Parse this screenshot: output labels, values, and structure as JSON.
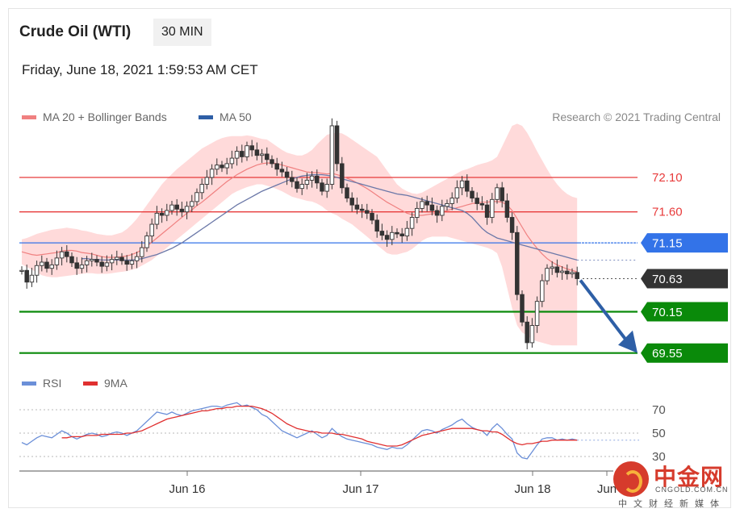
{
  "header": {
    "title": "Crude Oil (WTI)",
    "timeframe": "30 MIN",
    "datetime": "Friday, June 18, 2021 1:59:53 AM CET"
  },
  "legend": {
    "ma20": "MA 20 + Bollinger Bands",
    "ma50": "MA 50",
    "credit": "Research © 2021 Trading Central"
  },
  "rsi_legend": {
    "rsi": "RSI",
    "ma9": "9MA"
  },
  "colors": {
    "ma20": "#f08080",
    "band_fill": "#ffd6d6",
    "ma50": "#6b78a8",
    "resistance": "#e83b3b",
    "pivot": "#3373e8",
    "support": "#0a8a0a",
    "last_price": "#333333",
    "candle": "#333333",
    "rsi": "#6b8fd8",
    "rsi_ma": "#e03030",
    "arrow": "#2e5fa6"
  },
  "watermark": {
    "name": "中金网",
    "url": "CNGOLD.COM.CN",
    "sub": "中文财经新媒体"
  },
  "chart_data": [
    {
      "type": "candlestick",
      "title": "Crude Oil (WTI)",
      "ylim": [
        69.35,
        72.65
      ],
      "x_ticks": [
        "Jun 16",
        "Jun 17",
        "Jun 18",
        "Jun"
      ],
      "levels": [
        {
          "label": "72.10",
          "value": 72.1,
          "kind": "resistance"
        },
        {
          "label": "71.60",
          "value": 71.6,
          "kind": "resistance"
        },
        {
          "label": "71.15",
          "value": 71.15,
          "kind": "pivot"
        },
        {
          "label": "70.63",
          "value": 70.63,
          "kind": "last"
        },
        {
          "label": "70.15",
          "value": 70.15,
          "kind": "support"
        },
        {
          "label": "69.55",
          "value": 69.55,
          "kind": "support"
        }
      ],
      "close": [
        70.75,
        70.58,
        70.68,
        70.82,
        70.87,
        70.78,
        70.83,
        70.93,
        71.02,
        70.95,
        70.86,
        70.78,
        70.83,
        70.89,
        70.91,
        70.87,
        70.81,
        70.86,
        70.91,
        70.94,
        70.89,
        70.84,
        70.89,
        70.95,
        71.08,
        71.25,
        71.42,
        71.58,
        71.55,
        71.62,
        71.7,
        71.64,
        71.6,
        71.68,
        71.75,
        71.88,
        72.0,
        72.1,
        72.22,
        72.28,
        72.24,
        72.3,
        72.38,
        72.48,
        72.4,
        72.56,
        72.5,
        72.42,
        72.44,
        72.36,
        72.3,
        72.22,
        72.18,
        72.1,
        72.04,
        71.94,
        72.0,
        72.06,
        72.12,
        72.02,
        71.9,
        72.0,
        72.85,
        72.3,
        71.95,
        71.8,
        71.7,
        71.64,
        71.62,
        71.58,
        71.48,
        71.32,
        71.26,
        71.2,
        71.3,
        71.28,
        71.25,
        71.36,
        71.52,
        71.65,
        71.75,
        71.7,
        71.62,
        71.55,
        71.68,
        71.72,
        71.8,
        71.95,
        72.05,
        71.9,
        71.8,
        71.72,
        71.7,
        71.52,
        71.78,
        71.95,
        71.76,
        71.52,
        71.3,
        70.4,
        70.0,
        69.7,
        69.95,
        70.3,
        70.6,
        70.78,
        70.8,
        70.72,
        70.74,
        70.7,
        70.72,
        70.63
      ],
      "ma20": [
        71.02,
        71.0,
        70.98,
        70.97,
        70.98,
        70.99,
        71.0,
        71.01,
        71.03,
        71.04,
        71.04,
        71.03,
        71.01,
        71.0,
        70.99,
        70.97,
        70.95,
        70.94,
        70.94,
        70.94,
        70.95,
        70.96,
        70.98,
        71.01,
        71.05,
        71.1,
        71.16,
        71.22,
        71.28,
        71.34,
        71.4,
        71.46,
        71.52,
        71.58,
        71.63,
        71.69,
        71.74,
        71.8,
        71.86,
        71.92,
        71.98,
        72.04,
        72.09,
        72.14,
        72.18,
        72.22,
        72.25,
        72.28,
        72.3,
        72.31,
        72.31,
        72.3,
        72.28,
        72.26,
        72.24,
        72.22,
        72.2,
        72.18,
        72.17,
        72.17,
        72.16,
        72.15,
        72.16,
        72.14,
        72.12,
        72.09,
        72.06,
        72.02,
        71.98,
        71.94,
        71.89,
        71.84,
        71.79,
        71.74,
        71.7,
        71.66,
        71.62,
        71.58,
        71.56,
        71.55,
        71.55,
        71.56,
        71.57,
        71.58,
        71.6,
        71.62,
        71.64,
        71.66,
        71.68,
        71.7,
        71.72,
        71.73,
        71.74,
        71.74,
        71.75,
        71.75,
        71.74,
        71.7,
        71.62,
        71.5,
        71.38,
        71.26,
        71.16,
        71.07,
        70.99,
        70.92,
        70.87,
        70.83,
        70.8,
        70.77,
        70.75,
        70.73
      ],
      "bb_upper": [
        71.2,
        71.22,
        71.25,
        71.28,
        71.3,
        71.32,
        71.34,
        71.35,
        71.36,
        71.37,
        71.36,
        71.35,
        71.33,
        71.32,
        71.3,
        71.28,
        71.27,
        71.26,
        71.26,
        71.28,
        71.3,
        71.35,
        71.42,
        71.5,
        71.6,
        71.7,
        71.8,
        71.9,
        72.0,
        72.08,
        72.15,
        72.22,
        72.28,
        72.34,
        72.4,
        72.46,
        72.52,
        72.56,
        72.6,
        72.64,
        72.67,
        72.69,
        72.7,
        72.7,
        72.7,
        72.71,
        72.7,
        72.68,
        72.66,
        72.65,
        72.6,
        72.55,
        72.5,
        72.46,
        72.44,
        72.42,
        72.42,
        72.45,
        72.5,
        72.58,
        72.65,
        72.72,
        72.74,
        72.75,
        72.74,
        72.7,
        72.65,
        72.6,
        72.55,
        72.5,
        72.45,
        72.4,
        72.3,
        72.2,
        72.1,
        72.0,
        71.94,
        71.9,
        71.87,
        71.86,
        71.88,
        71.92,
        71.96,
        72.0,
        72.04,
        72.08,
        72.12,
        72.16,
        72.2,
        72.22,
        72.25,
        72.28,
        72.3,
        72.32,
        72.35,
        72.4,
        72.55,
        72.7,
        72.85,
        72.88,
        72.85,
        72.75,
        72.62,
        72.48,
        72.35,
        72.22,
        72.1,
        72.0,
        71.92,
        71.86,
        71.82,
        71.8
      ],
      "bb_lower": [
        70.84,
        70.8,
        70.76,
        70.72,
        70.68,
        70.66,
        70.65,
        70.65,
        70.66,
        70.67,
        70.68,
        70.69,
        70.7,
        70.71,
        70.71,
        70.7,
        70.7,
        70.7,
        70.71,
        70.72,
        70.73,
        70.74,
        70.76,
        70.78,
        70.82,
        70.86,
        70.9,
        70.96,
        71.02,
        71.08,
        71.14,
        71.2,
        71.26,
        71.32,
        71.38,
        71.44,
        71.5,
        71.56,
        71.62,
        71.68,
        71.74,
        71.8,
        71.86,
        71.9,
        71.93,
        71.96,
        71.98,
        72.0,
        72.0,
        71.98,
        71.96,
        71.93,
        71.9,
        71.86,
        71.82,
        71.8,
        71.78,
        71.76,
        71.75,
        71.72,
        71.68,
        71.62,
        71.58,
        71.55,
        71.5,
        71.46,
        71.42,
        71.36,
        71.3,
        71.24,
        71.18,
        71.12,
        71.06,
        71.0,
        70.98,
        70.98,
        71.0,
        71.02,
        71.06,
        71.12,
        71.18,
        71.22,
        71.24,
        71.24,
        71.24,
        71.24,
        71.22,
        71.2,
        71.18,
        71.16,
        71.14,
        71.12,
        71.1,
        71.08,
        71.05,
        71.0,
        70.8,
        70.5,
        70.2,
        69.95,
        69.85,
        69.8,
        69.75,
        69.72,
        69.7,
        69.68,
        69.66,
        69.66,
        69.66,
        69.66,
        69.66,
        69.66
      ],
      "ma50_start_index": 12,
      "ma50": [
        70.92,
        70.92,
        70.91,
        70.91,
        70.9,
        70.9,
        70.9,
        70.9,
        70.9,
        70.9,
        70.9,
        70.91,
        70.92,
        70.94,
        70.96,
        70.98,
        71.01,
        71.04,
        71.07,
        71.11,
        71.15,
        71.2,
        71.25,
        71.3,
        71.35,
        71.4,
        71.45,
        71.5,
        71.55,
        71.6,
        71.65,
        71.7,
        71.74,
        71.78,
        71.82,
        71.86,
        71.9,
        71.93,
        71.96,
        71.99,
        72.02,
        72.05,
        72.08,
        72.1,
        72.12,
        72.13,
        72.14,
        72.14,
        72.14,
        72.13,
        72.12,
        72.1,
        72.08,
        72.06,
        72.04,
        72.02,
        72.0,
        71.98,
        71.96,
        71.94,
        71.92,
        71.9,
        71.88,
        71.86,
        71.85,
        71.84,
        71.82,
        71.8,
        71.78,
        71.76,
        71.74,
        71.72,
        71.7,
        71.68,
        71.66,
        71.64,
        71.62,
        71.58,
        71.52,
        71.44,
        71.36,
        71.3,
        71.26,
        71.22,
        71.2,
        71.18,
        71.16,
        71.14,
        71.12,
        71.1,
        71.08,
        71.06,
        71.04,
        71.02,
        71.0,
        70.98,
        70.96,
        70.94,
        70.92,
        70.9
      ]
    },
    {
      "type": "line",
      "title": "RSI",
      "ylim": [
        25,
        80
      ],
      "y_ticks": [
        30,
        50,
        70
      ],
      "series": [
        {
          "name": "RSI",
          "values": [
            42,
            40,
            43,
            46,
            48,
            47,
            46,
            49,
            52,
            50,
            47,
            45,
            47,
            49,
            50,
            49,
            47,
            48,
            50,
            51,
            50,
            48,
            50,
            52,
            56,
            60,
            64,
            68,
            67,
            66,
            68,
            66,
            65,
            67,
            69,
            70,
            71,
            72,
            73,
            73,
            72,
            74,
            75,
            76,
            73,
            74,
            72,
            70,
            66,
            64,
            60,
            56,
            52,
            50,
            48,
            46,
            48,
            50,
            52,
            49,
            46,
            48,
            54,
            50,
            47,
            45,
            44,
            43,
            42,
            41,
            40,
            38,
            37,
            36,
            38,
            37,
            37,
            40,
            44,
            48,
            52,
            53,
            52,
            50,
            53,
            55,
            57,
            60,
            62,
            58,
            55,
            53,
            52,
            48,
            54,
            58,
            54,
            49,
            45,
            33,
            29,
            28,
            34,
            40,
            45,
            46,
            46,
            44,
            45,
            44,
            45,
            44
          ]
        },
        {
          "name": "9MA",
          "start_index": 8,
          "values": [
            46,
            46,
            47,
            47,
            47,
            48,
            48,
            48,
            49,
            49,
            49,
            49,
            49,
            50,
            50,
            51,
            52,
            54,
            56,
            58,
            60,
            62,
            63,
            64,
            65,
            66,
            67,
            68,
            69,
            69,
            70,
            71,
            71,
            72,
            72,
            73,
            73,
            73,
            73,
            72,
            71,
            69,
            67,
            64,
            61,
            58,
            56,
            54,
            53,
            52,
            51,
            51,
            50,
            50,
            50,
            49,
            49,
            48,
            47,
            46,
            45,
            43,
            42,
            41,
            40,
            39,
            39,
            39,
            40,
            42,
            44,
            46,
            48,
            49,
            50,
            51,
            52,
            53,
            54,
            54,
            54,
            54,
            54,
            53,
            52,
            52,
            51,
            51,
            49,
            46,
            43,
            41,
            40,
            41,
            41,
            42,
            43,
            43,
            44,
            44,
            44,
            44,
            44,
            44
          ]
        }
      ]
    }
  ]
}
